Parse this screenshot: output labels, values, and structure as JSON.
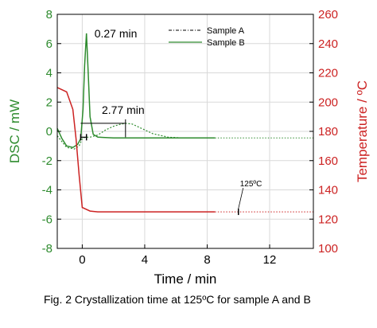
{
  "caption": "Fig. 2  Crystallization time at 125ºC for sample A and B",
  "chart_data": {
    "type": "line",
    "xlabel": "Time / min",
    "ylabel_left": "DSC / mW",
    "ylabel_right": "Temperature / ºC",
    "xlim": [
      -1.6,
      14.8
    ],
    "ylim_left": [
      -8,
      8
    ],
    "ylim_right": [
      100,
      260
    ],
    "x_ticks": [
      0,
      4,
      8,
      12
    ],
    "y_left_ticks": [
      -8,
      -6,
      -4,
      -2,
      0,
      2,
      4,
      6,
      8
    ],
    "y_right_ticks": [
      100,
      120,
      140,
      160,
      180,
      200,
      220,
      240,
      260
    ],
    "colors": {
      "dsc": "#2e8b2e",
      "temperature": "#cc2222",
      "axis_left": "#2e8b2e",
      "axis_right": "#cc2222"
    },
    "legend": [
      {
        "name": "Sample A",
        "style": "dash-dot"
      },
      {
        "name": "Sample B",
        "style": "solid"
      }
    ],
    "series": [
      {
        "name": "Sample A",
        "axis": "left",
        "x": [
          -1.6,
          -1.3,
          -1.0,
          -0.5,
          -0.2,
          0.0,
          0.2,
          0.3,
          0.5,
          1.0,
          1.5,
          2.0,
          2.5,
          2.8,
          3.2,
          3.8,
          4.5,
          5.5,
          6.5,
          8.5
        ],
        "y": [
          -0.3,
          -0.7,
          -1.1,
          -1.2,
          -1.0,
          -0.5,
          -0.4,
          -0.4,
          -0.4,
          -0.25,
          0.1,
          0.35,
          0.5,
          0.55,
          0.5,
          0.2,
          -0.15,
          -0.4,
          -0.45,
          -0.45
        ]
      },
      {
        "name": "Sample B",
        "axis": "left",
        "x": [
          -1.6,
          -1.3,
          -1.0,
          -0.6,
          -0.3,
          -0.1,
          0.05,
          0.15,
          0.27,
          0.38,
          0.5,
          0.7,
          1.0,
          2.0,
          4.0,
          6.0,
          8.5
        ],
        "y": [
          0.2,
          -0.5,
          -1.0,
          -1.1,
          -0.9,
          -0.5,
          1.5,
          4.5,
          6.7,
          4.0,
          1.0,
          -0.2,
          -0.4,
          -0.45,
          -0.45,
          -0.45,
          -0.45
        ]
      },
      {
        "name": "Temperature",
        "axis": "right",
        "x": [
          -1.6,
          -1.0,
          -0.6,
          -0.4,
          -0.2,
          0.0,
          0.5,
          1.0,
          2.0,
          4.0,
          6.0,
          8.5
        ],
        "y": [
          210,
          207,
          195,
          175,
          150,
          128,
          125.5,
          125,
          125,
          125,
          125,
          125
        ]
      }
    ],
    "annotations": [
      {
        "text": "0.27 min",
        "x": 0.27,
        "y": 6.7
      },
      {
        "text": "2.77 min",
        "x": 2.77,
        "y": 0.6
      },
      {
        "text": "125ºC",
        "x": 10,
        "y": 125
      }
    ],
    "markers": {
      "b_start": -0.1,
      "b_peak": 0.27,
      "a_start": -0.1,
      "a_peak": 2.77,
      "temp_point": 10
    }
  }
}
